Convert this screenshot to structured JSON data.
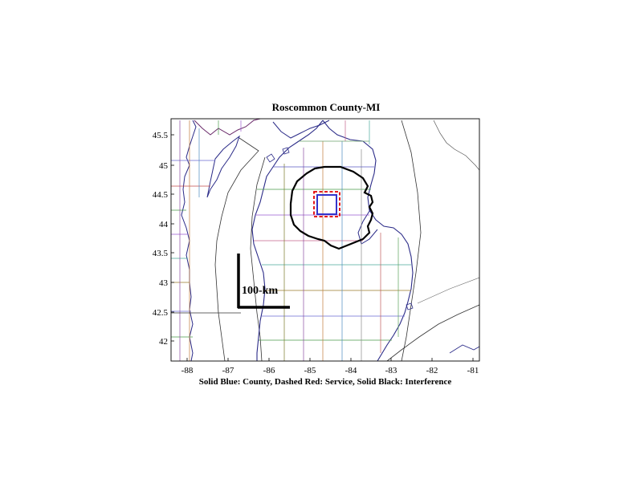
{
  "title": "Roscommon County-MI",
  "caption": "Solid Blue: County, Dashed Red: Service, Solid Black: Interference",
  "scale_bar_label": "100-km",
  "x_ticks": [
    "-88",
    "-87",
    "-86",
    "-85",
    "-84",
    "-83",
    "-82",
    "-81"
  ],
  "y_ticks": [
    "45.5",
    "45",
    "44.5",
    "44",
    "43.5",
    "43",
    "42.5",
    "42"
  ],
  "colors": {
    "county": "#3333cc",
    "service": "#e00000",
    "interference": "#000000"
  }
}
